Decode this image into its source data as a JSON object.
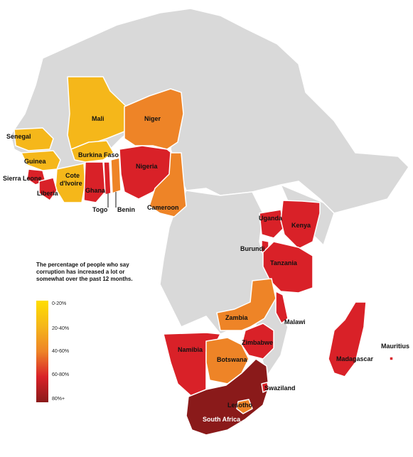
{
  "legend": {
    "title": "The percentage of people who say corruption has increased a lot or somewhat over the past 12 months.",
    "items": [
      {
        "label": "0-20%",
        "color": "#ffde00"
      },
      {
        "label": "20-40%",
        "color": "#f5b71a"
      },
      {
        "label": "40-60%",
        "color": "#ee8427"
      },
      {
        "label": "60-80%",
        "color": "#d92128"
      },
      {
        "label": "80%+",
        "color": "#8a1a1a"
      }
    ]
  },
  "category_colors": {
    "0-20%": "#ffde00",
    "20-40%": "#f5b71a",
    "40-60%": "#ee8427",
    "60-80%": "#d92128",
    "80%+": "#8a1a1a",
    "no_data": "#d9d9d9"
  },
  "countries": [
    {
      "name": "Senegal",
      "category": "20-40%"
    },
    {
      "name": "Mali",
      "category": "20-40%"
    },
    {
      "name": "Niger",
      "category": "40-60%"
    },
    {
      "name": "Burkina Faso",
      "category": "20-40%"
    },
    {
      "name": "Guinea",
      "category": "20-40%"
    },
    {
      "name": "Sierra Leone",
      "category": "60-80%"
    },
    {
      "name": "Cote d'Ivoire",
      "category": "20-40%"
    },
    {
      "name": "Liberia",
      "category": "60-80%"
    },
    {
      "name": "Ghana",
      "category": "60-80%"
    },
    {
      "name": "Togo",
      "category": "60-80%"
    },
    {
      "name": "Benin",
      "category": "40-60%"
    },
    {
      "name": "Nigeria",
      "category": "60-80%"
    },
    {
      "name": "Cameroon",
      "category": "40-60%"
    },
    {
      "name": "Uganda",
      "category": "60-80%"
    },
    {
      "name": "Kenya",
      "category": "60-80%"
    },
    {
      "name": "Burundi",
      "category": "60-80%"
    },
    {
      "name": "Tanzania",
      "category": "60-80%"
    },
    {
      "name": "Zambia",
      "category": "40-60%"
    },
    {
      "name": "Malawi",
      "category": "60-80%"
    },
    {
      "name": "Zimbabwe",
      "category": "60-80%"
    },
    {
      "name": "Namibia",
      "category": "60-80%"
    },
    {
      "name": "Botswana",
      "category": "40-60%"
    },
    {
      "name": "Madagascar",
      "category": "60-80%"
    },
    {
      "name": "Mauritius",
      "category": "60-80%"
    },
    {
      "name": "South Africa",
      "category": "80%+"
    },
    {
      "name": "Lesotho",
      "category": "40-60%"
    },
    {
      "name": "Swaziland",
      "category": "60-80%"
    }
  ]
}
